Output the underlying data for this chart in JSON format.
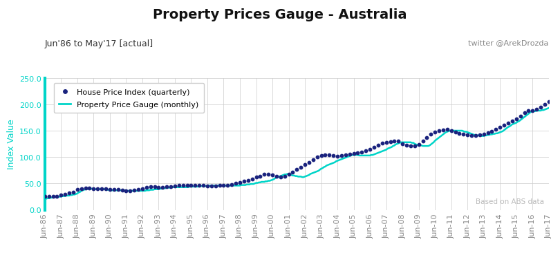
{
  "title": "Property Prices Gauge - Australia",
  "subtitle": "Jun'86 to May'17 [actual]",
  "twitter": "twitter @ArekDrozda",
  "watermark": "Based on ABS data",
  "ylabel": "Index Value",
  "ylim": [
    0,
    250
  ],
  "yticks": [
    0.0,
    50.0,
    100.0,
    150.0,
    200.0,
    250.0
  ],
  "line_color": "#00d4c8",
  "dot_color": "#1a237e",
  "spine_color": "#00d4c8",
  "ytick_color": "#00d4c8",
  "bg_color": "#ffffff",
  "grid_color": "#cccccc",
  "title_fontsize": 14,
  "subtitle_fontsize": 9,
  "axis_label_fontsize": 9,
  "tick_fontsize": 8,
  "legend_dot_label": "House Price Index (quarterly)",
  "legend_line_label": "Property Price Gauge (monthly)",
  "xtick_labels": [
    "Jun-86",
    "Jun-87",
    "Jun-88",
    "Jun-89",
    "Jun-90",
    "Jun-91",
    "Jun-92",
    "Jun-93",
    "Jun-94",
    "Jun-95",
    "Jun-96",
    "Jun-97",
    "Jun-98",
    "Jun-99",
    "Jun-00",
    "Jun-01",
    "Jun-02",
    "Jun-03",
    "Jun-04",
    "Jun-05",
    "Jun-06",
    "Jun-07",
    "Jun-08",
    "Jun-09",
    "Jun-10",
    "Jun-11",
    "Jun-12",
    "Jun-13",
    "Jun-14",
    "Jun-15",
    "Jun-16",
    "Jun-17"
  ],
  "quarterly_values": [
    25,
    25,
    26,
    26,
    28,
    30,
    32,
    34,
    38,
    40,
    41,
    41,
    40,
    40,
    40,
    40,
    38,
    38,
    38,
    37,
    36,
    36,
    37,
    38,
    40,
    42,
    44,
    44,
    43,
    43,
    44,
    44,
    45,
    46,
    47,
    47,
    46,
    46,
    46,
    46,
    45,
    45,
    45,
    46,
    46,
    47,
    48,
    50,
    52,
    54,
    56,
    58,
    62,
    64,
    67,
    68,
    66,
    64,
    62,
    63,
    68,
    72,
    76,
    80,
    86,
    90,
    95,
    100,
    103,
    104,
    104,
    103,
    102,
    103,
    104,
    106,
    107,
    108,
    110,
    112,
    115,
    118,
    122,
    127,
    128,
    129,
    130,
    130,
    125,
    123,
    121,
    121,
    124,
    130,
    137,
    143,
    148,
    150,
    151,
    152,
    150,
    148,
    145,
    143,
    142,
    141,
    141,
    142,
    144,
    146,
    149,
    152,
    156,
    160,
    164,
    168,
    172,
    178,
    184,
    188,
    188,
    190,
    195,
    200,
    205,
    210
  ],
  "monthly_values": [
    21,
    21,
    22,
    22,
    23,
    23,
    24,
    24,
    25,
    25,
    25,
    25,
    25,
    26,
    26,
    26,
    27,
    27,
    27,
    28,
    28,
    29,
    29,
    30,
    31,
    33,
    34,
    36,
    37,
    38,
    39,
    39,
    40,
    40,
    40,
    40,
    39,
    39,
    39,
    39,
    39,
    39,
    39,
    39,
    39,
    39,
    38,
    38,
    37,
    37,
    37,
    37,
    37,
    37,
    37,
    37,
    37,
    37,
    37,
    37,
    36,
    36,
    36,
    36,
    36,
    36,
    36,
    36,
    36,
    36,
    36,
    36,
    36,
    36,
    36,
    37,
    37,
    37,
    38,
    38,
    38,
    39,
    39,
    39,
    39,
    40,
    40,
    41,
    41,
    41,
    42,
    42,
    42,
    43,
    43,
    43,
    43,
    43,
    43,
    43,
    43,
    43,
    43,
    43,
    43,
    43,
    43,
    44,
    44,
    44,
    44,
    44,
    44,
    44,
    45,
    45,
    45,
    45,
    45,
    45,
    45,
    45,
    46,
    46,
    46,
    46,
    46,
    46,
    46,
    46,
    46,
    46,
    46,
    46,
    46,
    46,
    46,
    46,
    46,
    46,
    46,
    46,
    46,
    46,
    46,
    47,
    47,
    47,
    47,
    48,
    48,
    48,
    49,
    49,
    49,
    50,
    51,
    51,
    52,
    52,
    53,
    53,
    53,
    54,
    54,
    55,
    55,
    56,
    57,
    58,
    60,
    61,
    62,
    63,
    64,
    65,
    66,
    67,
    67,
    68,
    67,
    67,
    66,
    65,
    65,
    64,
    64,
    63,
    63,
    63,
    62,
    62,
    63,
    64,
    65,
    66,
    68,
    69,
    70,
    71,
    72,
    73,
    74,
    76,
    78,
    79,
    81,
    82,
    84,
    85,
    86,
    87,
    88,
    89,
    90,
    92,
    93,
    94,
    95,
    96,
    97,
    98,
    99,
    100,
    101,
    102,
    103,
    104,
    104,
    104,
    104,
    104,
    103,
    103,
    103,
    103,
    103,
    103,
    103,
    103,
    103,
    104,
    104,
    105,
    106,
    107,
    108,
    109,
    110,
    111,
    112,
    113,
    114,
    116,
    117,
    118,
    119,
    121,
    122,
    124,
    125,
    126,
    127,
    128,
    128,
    128,
    128,
    128,
    128,
    128,
    128,
    127,
    127,
    125,
    124,
    123,
    122,
    122,
    122,
    121,
    121,
    121,
    121,
    121,
    122,
    124,
    126,
    128,
    131,
    133,
    135,
    137,
    139,
    141,
    143,
    145,
    147,
    148,
    149,
    150,
    150,
    150,
    150,
    150,
    150,
    150,
    150,
    150,
    150,
    149,
    148,
    148,
    147,
    146,
    145,
    144,
    143,
    142,
    142,
    141,
    141,
    141,
    140,
    140,
    140,
    141,
    141,
    142,
    142,
    143,
    143,
    144,
    144,
    145,
    145,
    146,
    147,
    148,
    149,
    151,
    153,
    155,
    157,
    158,
    160,
    162,
    163,
    164,
    165,
    167,
    168,
    170,
    172,
    174,
    176,
    178,
    180,
    182,
    184,
    186,
    186,
    187,
    187,
    188,
    188,
    188,
    188,
    189,
    189,
    190,
    191,
    192,
    193,
    194,
    196,
    197,
    198,
    200,
    201,
    202,
    203,
    188,
    186,
    184,
    183,
    182,
    181,
    180,
    180,
    181,
    182,
    183,
    184,
    185,
    186,
    188,
    190
  ]
}
